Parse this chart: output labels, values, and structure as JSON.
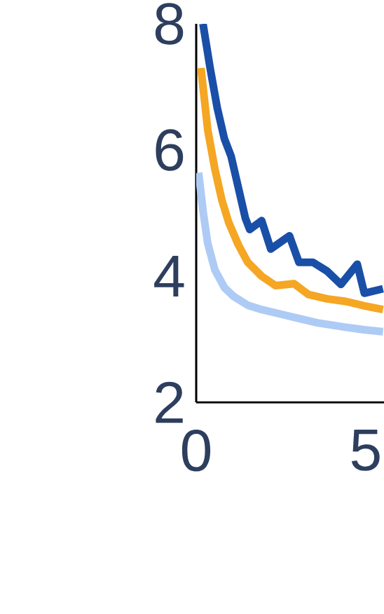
{
  "chart_data": {
    "type": "line",
    "xlim": [
      0,
      5.54
    ],
    "ylim": [
      2,
      8
    ],
    "xticks": [
      0,
      5
    ],
    "yticks": [
      2,
      4,
      6,
      8
    ],
    "grid": false,
    "marker": "none",
    "line_style": "solid",
    "series": [
      {
        "color": "#aecbf5",
        "x": [
          0.07,
          0.21,
          0.34,
          0.55,
          0.83,
          1.1,
          1.52,
          1.93,
          2.48,
          3.03,
          3.58,
          4.41,
          4.96,
          5.51
        ],
        "values": [
          5.64,
          5.0,
          4.52,
          4.1,
          3.82,
          3.68,
          3.54,
          3.47,
          3.4,
          3.33,
          3.26,
          3.19,
          3.15,
          3.12
        ]
      },
      {
        "color": "#f5a623",
        "x": [
          0.14,
          0.34,
          0.55,
          0.76,
          0.96,
          1.24,
          1.52,
          1.93,
          2.34,
          2.89,
          3.31,
          3.86,
          4.41,
          4.96,
          5.51
        ],
        "values": [
          7.3,
          6.32,
          5.7,
          5.2,
          4.85,
          4.5,
          4.22,
          4.0,
          3.85,
          3.88,
          3.71,
          3.64,
          3.6,
          3.53,
          3.47
        ]
      },
      {
        "color": "#1a4fa8",
        "x": [
          0.2,
          0.41,
          0.62,
          0.83,
          1.03,
          1.24,
          1.45,
          1.58,
          1.93,
          2.2,
          2.75,
          3.03,
          3.44,
          3.86,
          4.27,
          4.75,
          4.96,
          5.51
        ],
        "values": [
          8,
          7.3,
          6.67,
          6.18,
          5.9,
          5.41,
          4.92,
          4.74,
          4.88,
          4.43,
          4.64,
          4.22,
          4.22,
          4.08,
          3.87,
          4.19,
          3.73,
          3.8
        ]
      }
    ]
  }
}
